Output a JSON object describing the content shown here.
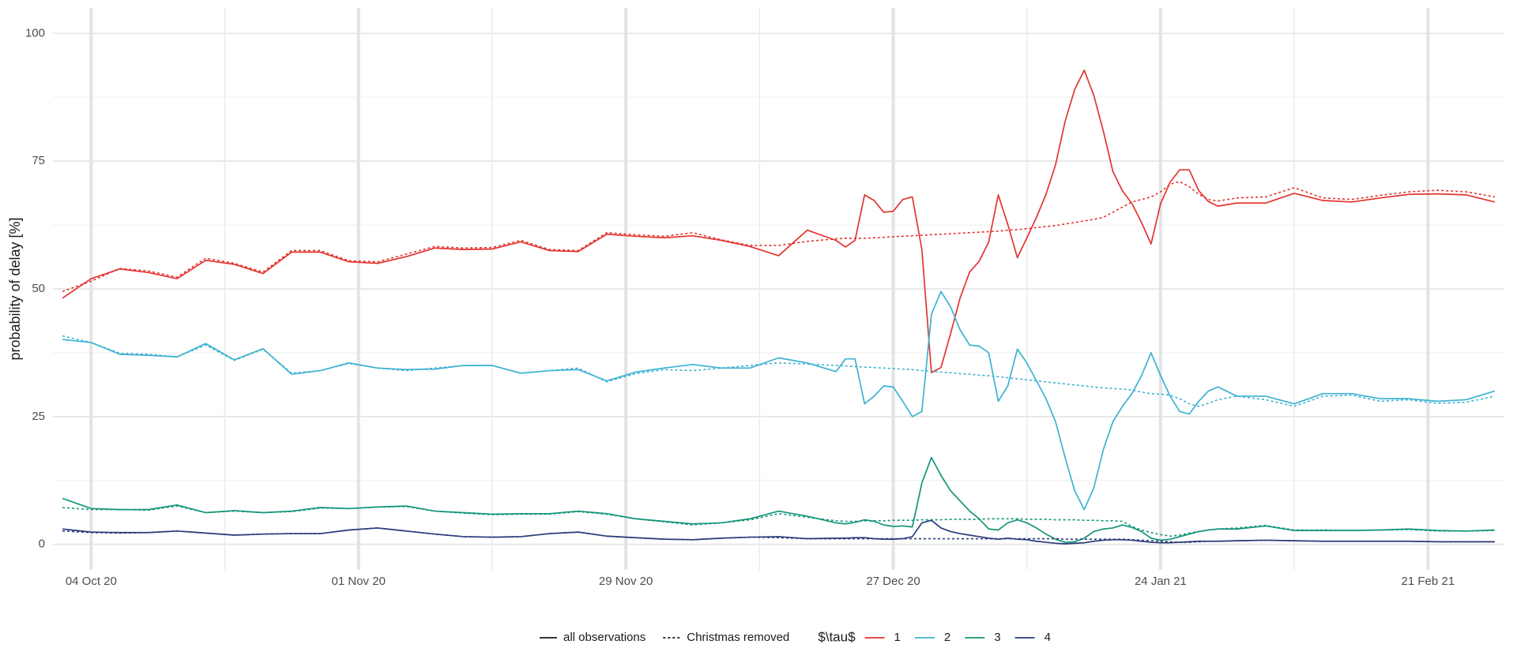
{
  "chart_data": {
    "type": "line",
    "y_label": "probability of delay [%]",
    "line_styles": [
      "all observations",
      "Christmas removed"
    ],
    "color_legend_title": "$\\tau$",
    "x": [
      "2020-10-01",
      "2020-10-04",
      "2020-10-07",
      "2020-10-10",
      "2020-10-13",
      "2020-10-16",
      "2020-10-19",
      "2020-10-22",
      "2020-10-25",
      "2020-10-28",
      "2020-10-31",
      "2020-11-03",
      "2020-11-06",
      "2020-11-09",
      "2020-11-12",
      "2020-11-15",
      "2020-11-18",
      "2020-11-21",
      "2020-11-24",
      "2020-11-27",
      "2020-11-30",
      "2020-12-03",
      "2020-12-06",
      "2020-12-09",
      "2020-12-12",
      "2020-12-15",
      "2020-12-18",
      "2020-12-21",
      "2020-12-22",
      "2020-12-23",
      "2020-12-24",
      "2020-12-25",
      "2020-12-26",
      "2020-12-27",
      "2020-12-28",
      "2020-12-29",
      "2020-12-30",
      "2020-12-31",
      "2021-01-01",
      "2021-01-02",
      "2021-01-03",
      "2021-01-04",
      "2021-01-05",
      "2021-01-06",
      "2021-01-07",
      "2021-01-08",
      "2021-01-09",
      "2021-01-10",
      "2021-01-11",
      "2021-01-12",
      "2021-01-13",
      "2021-01-14",
      "2021-01-15",
      "2021-01-16",
      "2021-01-17",
      "2021-01-18",
      "2021-01-19",
      "2021-01-20",
      "2021-01-21",
      "2021-01-22",
      "2021-01-23",
      "2021-01-24",
      "2021-01-25",
      "2021-01-26",
      "2021-01-27",
      "2021-01-28",
      "2021-01-29",
      "2021-01-30",
      "2021-02-01",
      "2021-02-04",
      "2021-02-07",
      "2021-02-10",
      "2021-02-13",
      "2021-02-16",
      "2021-02-19",
      "2021-02-22",
      "2021-02-25",
      "2021-02-28"
    ],
    "series": [
      {
        "name": "1",
        "color": "#e3342f",
        "values": [
          48.2,
          52,
          53.9,
          53.2,
          52,
          55.6,
          54.8,
          53,
          57.2,
          57.2,
          55.3,
          55,
          56.3,
          58,
          57.7,
          57.8,
          59.2,
          57.5,
          57.3,
          60.7,
          60.3,
          60,
          60.4,
          59.5,
          58.3,
          56.5,
          61.5,
          59.5,
          58.2,
          59.5,
          68.4,
          67.3,
          65,
          65.2,
          67.5,
          68,
          57.7,
          33.6,
          34.6,
          41.2,
          48.2,
          53.3,
          55.4,
          59.2,
          68.4,
          62.6,
          56.1,
          60,
          64,
          68.5,
          74.3,
          82.8,
          89,
          92.8,
          87.9,
          80.9,
          73,
          69.2,
          66.7,
          63,
          58.8,
          66.7,
          70.9,
          73.3,
          73.3,
          69.2,
          67.1,
          66.2,
          66.8,
          66.8,
          68.7,
          67.3,
          67,
          67.8,
          68.5,
          68.6,
          68.4,
          67
        ],
        "values_christmas_removed": [
          49.5,
          51.5,
          54,
          53.5,
          52.3,
          56,
          55,
          53.3,
          57.5,
          57.5,
          55.5,
          55.3,
          56.8,
          58.3,
          58,
          58.1,
          59.5,
          57.7,
          57.5,
          61,
          60.6,
          60.3,
          61,
          59.6,
          58.5,
          58.5,
          59.3,
          59.8,
          59.9,
          59.9,
          59.9,
          60,
          60.1,
          60.2,
          60.3,
          60.4,
          60.5,
          60.6,
          60.7,
          60.8,
          60.9,
          61,
          61.1,
          61.2,
          61.3,
          61.5,
          61.6,
          61.8,
          62,
          62.2,
          62.4,
          62.7,
          63,
          63.3,
          63.6,
          64,
          65,
          66,
          67,
          67.5,
          68,
          69,
          70.5,
          71,
          70,
          68.5,
          67.5,
          67.2,
          67.8,
          68,
          69.8,
          67.8,
          67.5,
          68.3,
          69,
          69.3,
          69,
          68
        ]
      },
      {
        "name": "2",
        "color": "#3db2d3",
        "values": [
          40.1,
          39.5,
          37.2,
          37,
          36.7,
          39.3,
          36.1,
          38.3,
          33.3,
          34,
          35.5,
          34.5,
          34.2,
          34.3,
          35,
          35,
          33.5,
          34,
          34.2,
          32,
          33.7,
          34.5,
          35.2,
          34.5,
          34.5,
          36.5,
          35.5,
          33.8,
          36.3,
          36.3,
          27.5,
          29,
          31,
          30.8,
          28,
          25,
          26,
          45,
          49.5,
          46.5,
          42,
          39,
          38.8,
          37.5,
          28,
          31,
          38.2,
          35.5,
          32,
          28.5,
          24,
          17,
          10.5,
          6.8,
          11,
          18.5,
          24,
          27,
          29.5,
          33,
          37.5,
          33,
          29,
          26,
          25.5,
          28,
          30,
          30.8,
          29,
          29,
          27.5,
          29.5,
          29.5,
          28.5,
          28.5,
          28,
          28.3,
          30
        ],
        "values_christmas_removed": [
          40.8,
          39.5,
          37.4,
          37.2,
          36.7,
          39,
          36,
          38.2,
          33.5,
          34,
          35.4,
          34.5,
          34,
          34.5,
          35,
          35,
          33.5,
          34,
          34.5,
          31.8,
          33.4,
          34.2,
          34,
          34.5,
          35,
          35.5,
          35.3,
          35,
          34.9,
          34.8,
          34.7,
          34.6,
          34.5,
          34.4,
          34.3,
          34.2,
          34,
          33.9,
          33.7,
          33.6,
          33.4,
          33.3,
          33.1,
          33,
          32.8,
          32.6,
          32.4,
          32.2,
          32,
          31.8,
          31.6,
          31.4,
          31.2,
          31,
          30.8,
          30.6,
          30.5,
          30.4,
          30.2,
          29.8,
          29.5,
          29.4,
          29.2,
          28.5,
          27.5,
          27,
          27.6,
          28.3,
          29,
          28.3,
          27,
          29,
          29.2,
          28,
          28.3,
          27.6,
          27.8,
          29
        ]
      },
      {
        "name": "3",
        "color": "#12957a",
        "values": [
          9,
          7,
          6.8,
          6.8,
          7.7,
          6.2,
          6.6,
          6.2,
          6.5,
          7.2,
          7,
          7.3,
          7.5,
          6.5,
          6.2,
          5.9,
          6,
          6,
          6.5,
          6,
          5,
          4.5,
          4,
          4.2,
          5,
          6.5,
          5.5,
          4.2,
          4,
          4.3,
          4.8,
          4.5,
          3.8,
          3.5,
          3.6,
          3.4,
          12,
          17,
          13.5,
          10.5,
          8.5,
          6.5,
          5,
          3,
          2.8,
          4.2,
          4.8,
          4.2,
          3.2,
          2,
          1,
          0.4,
          0.5,
          1.2,
          2.5,
          3,
          3.2,
          3.8,
          3.3,
          2.5,
          1.2,
          0.8,
          1,
          1.5,
          2,
          2.5,
          2.8,
          3,
          3,
          3.6,
          2.7,
          2.7,
          2.7,
          2.8,
          3,
          2.7,
          2.6,
          2.8
        ],
        "values_christmas_removed": [
          7.2,
          6.8,
          6.8,
          6.7,
          7.5,
          6.2,
          6.5,
          6.2,
          6.4,
          7.1,
          7,
          7.3,
          7.4,
          6.5,
          6.1,
          5.8,
          5.9,
          5.9,
          6.4,
          5.9,
          5,
          4.4,
          3.8,
          4.2,
          4.8,
          6,
          5.3,
          4.6,
          4.5,
          4.5,
          4.6,
          4.6,
          4.6,
          4.7,
          4.7,
          4.7,
          4.8,
          4.8,
          4.8,
          4.9,
          4.9,
          4.9,
          4.9,
          5,
          5,
          5,
          5,
          4.9,
          4.9,
          4.9,
          4.8,
          4.8,
          4.8,
          4.7,
          4.7,
          4.6,
          4.6,
          4.5,
          3.5,
          2.8,
          2.3,
          1.9,
          1.6,
          1.8,
          2.2,
          2.5,
          2.8,
          3,
          3.2,
          3.7,
          2.8,
          2.8,
          2.7,
          2.8,
          2.9,
          2.6,
          2.6,
          2.7
        ]
      },
      {
        "name": "4",
        "color": "#2a3b7b",
        "values": [
          3,
          2.4,
          2.3,
          2.3,
          2.6,
          2.2,
          1.8,
          2,
          2.1,
          2.1,
          2.8,
          3.2,
          2.6,
          2,
          1.5,
          1.4,
          1.5,
          2.1,
          2.4,
          1.6,
          1.3,
          1,
          0.9,
          1.2,
          1.4,
          1.5,
          1.1,
          1.2,
          1.2,
          1.3,
          1.3,
          1.1,
          1,
          1,
          1.1,
          1.5,
          4.2,
          4.7,
          3.2,
          2.5,
          2.1,
          1.8,
          1.5,
          1.2,
          1,
          1.2,
          1,
          0.9,
          0.6,
          0.4,
          0.2,
          0.1,
          0.2,
          0.3,
          0.6,
          0.8,
          0.9,
          0.9,
          0.8,
          0.6,
          0.4,
          0.3,
          0.3,
          0.4,
          0.5,
          0.6,
          0.6,
          0.6,
          0.7,
          0.8,
          0.7,
          0.6,
          0.6,
          0.6,
          0.6,
          0.5,
          0.5,
          0.5
        ],
        "values_christmas_removed": [
          2.6,
          2.3,
          2.2,
          2.3,
          2.6,
          2.2,
          1.8,
          2,
          2.1,
          2.1,
          2.8,
          3.2,
          2.6,
          2,
          1.5,
          1.4,
          1.5,
          2.1,
          2.4,
          1.6,
          1.3,
          1,
          0.9,
          1.2,
          1.4,
          1.3,
          1.1,
          1.1,
          1.1,
          1.1,
          1.1,
          1.1,
          1.1,
          1.1,
          1.1,
          1.1,
          1.1,
          1.1,
          1.1,
          1.1,
          1.1,
          1.1,
          1.1,
          1.1,
          1.1,
          1.1,
          1.1,
          1.1,
          1.1,
          1.1,
          1.1,
          1,
          1,
          1,
          1,
          1,
          1,
          1,
          0.9,
          0.8,
          0.7,
          0.6,
          0.5,
          0.4,
          0.4,
          0.5,
          0.6,
          0.6,
          0.7,
          0.8,
          0.7,
          0.6,
          0.6,
          0.6,
          0.6,
          0.5,
          0.5,
          0.5
        ]
      }
    ],
    "xlim": [
      "2020-09-30",
      "2021-03-01"
    ],
    "xticks": [
      {
        "value": "2020-10-04",
        "label": "04 Oct 20"
      },
      {
        "value": "2020-11-01",
        "label": "01 Nov 20"
      },
      {
        "value": "2020-11-29",
        "label": "29 Nov 20"
      },
      {
        "value": "2020-12-27",
        "label": "27 Dec 20"
      },
      {
        "value": "2021-01-24",
        "label": "24 Jan 21"
      },
      {
        "value": "2021-02-21",
        "label": "21 Feb 21"
      }
    ],
    "ylim": [
      -5,
      105
    ],
    "yticks": [
      0,
      25,
      50,
      75,
      100
    ],
    "grid": true
  }
}
